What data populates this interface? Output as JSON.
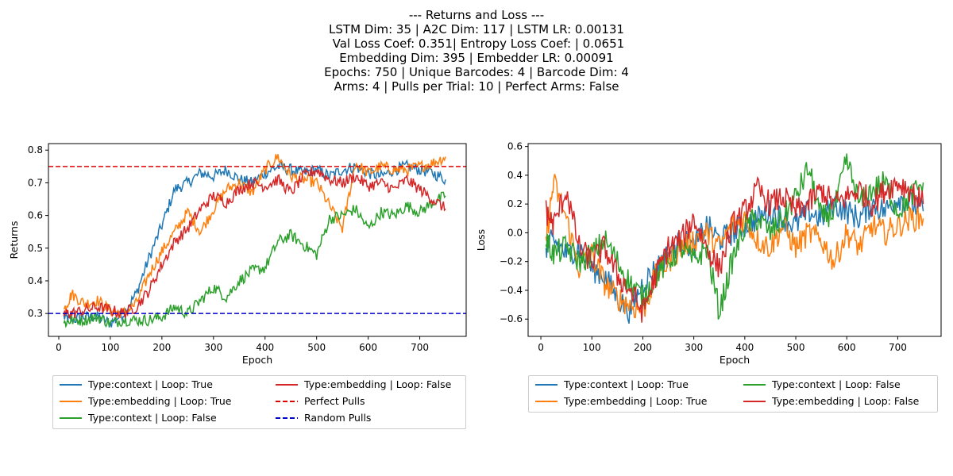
{
  "title_lines": [
    "--- Returns and Loss ---",
    "LSTM Dim: 35 | A2C Dim: 117 | LSTM LR: 0.00131",
    " Val Loss Coef: 0.351| Entropy Loss Coef: | 0.0651",
    "Embedding Dim: 395 | Embedder LR: 0.00091",
    "Epochs: 750 | Unique Barcodes: 4 | Barcode Dim: 4",
    "Arms: 4 | Pulls per Trial: 10 | Perfect Arms: False"
  ],
  "colors": {
    "blue": "#1f77b4",
    "orange": "#ff7f0e",
    "green": "#2ca02c",
    "red": "#d62728",
    "perfect": "#e00000",
    "random": "#0000cc"
  },
  "chart_data": [
    {
      "type": "line",
      "xlabel": "Epoch",
      "ylabel": "Returns",
      "xlim": [
        -20,
        790
      ],
      "ylim": [
        0.23,
        0.82
      ],
      "xticks": [
        0,
        100,
        200,
        300,
        400,
        500,
        600,
        700
      ],
      "yticks": [
        0.3,
        0.4,
        0.5,
        0.6,
        0.7,
        0.8
      ],
      "ytick_labels": [
        "0.3",
        "0.4",
        "0.5",
        "0.6",
        "0.7",
        "0.8"
      ],
      "hlines": [
        {
          "name": "Perfect Pulls",
          "y": 0.75,
          "color": "#e00000"
        },
        {
          "name": "Random Pulls",
          "y": 0.3,
          "color": "#0000cc"
        }
      ],
      "series": [
        {
          "name": "Type:context | Loop: True",
          "color": "#1f77b4",
          "x": [
            10,
            25,
            50,
            75,
            100,
            125,
            150,
            175,
            200,
            225,
            250,
            275,
            300,
            325,
            350,
            375,
            400,
            425,
            450,
            475,
            500,
            525,
            550,
            575,
            600,
            625,
            650,
            675,
            700,
            725,
            750
          ],
          "y": [
            0.29,
            0.28,
            0.29,
            0.29,
            0.27,
            0.3,
            0.36,
            0.47,
            0.57,
            0.68,
            0.7,
            0.73,
            0.72,
            0.74,
            0.71,
            0.7,
            0.73,
            0.75,
            0.74,
            0.73,
            0.74,
            0.72,
            0.74,
            0.75,
            0.73,
            0.72,
            0.74,
            0.75,
            0.74,
            0.73,
            0.71
          ]
        },
        {
          "name": "Type:embedding | Loop: True",
          "color": "#ff7f0e",
          "x": [
            10,
            25,
            50,
            75,
            100,
            125,
            150,
            175,
            200,
            225,
            250,
            275,
            300,
            325,
            350,
            375,
            400,
            425,
            450,
            475,
            500,
            525,
            550,
            575,
            600,
            625,
            650,
            675,
            700,
            725,
            750
          ],
          "y": [
            0.31,
            0.36,
            0.33,
            0.34,
            0.31,
            0.3,
            0.33,
            0.42,
            0.49,
            0.55,
            0.61,
            0.55,
            0.62,
            0.68,
            0.7,
            0.67,
            0.74,
            0.78,
            0.72,
            0.71,
            0.7,
            0.63,
            0.56,
            0.76,
            0.73,
            0.75,
            0.74,
            0.74,
            0.75,
            0.76,
            0.78
          ]
        },
        {
          "name": "Type:context | Loop: False",
          "color": "#2ca02c",
          "x": [
            10,
            25,
            50,
            75,
            100,
            125,
            150,
            175,
            200,
            225,
            250,
            275,
            300,
            325,
            350,
            375,
            400,
            425,
            450,
            475,
            500,
            525,
            550,
            575,
            600,
            625,
            650,
            675,
            700,
            725,
            750
          ],
          "y": [
            0.27,
            0.28,
            0.28,
            0.29,
            0.27,
            0.28,
            0.28,
            0.28,
            0.29,
            0.32,
            0.3,
            0.34,
            0.38,
            0.35,
            0.4,
            0.43,
            0.44,
            0.52,
            0.54,
            0.51,
            0.48,
            0.59,
            0.6,
            0.62,
            0.56,
            0.61,
            0.6,
            0.63,
            0.61,
            0.64,
            0.66
          ]
        },
        {
          "name": "Type:embedding | Loop: False",
          "color": "#d62728",
          "x": [
            10,
            25,
            50,
            75,
            100,
            125,
            150,
            175,
            200,
            225,
            250,
            275,
            300,
            325,
            350,
            375,
            400,
            425,
            450,
            475,
            500,
            525,
            550,
            575,
            600,
            625,
            650,
            675,
            700,
            725,
            750
          ],
          "y": [
            0.3,
            0.3,
            0.31,
            0.32,
            0.31,
            0.3,
            0.32,
            0.37,
            0.45,
            0.52,
            0.56,
            0.62,
            0.66,
            0.64,
            0.68,
            0.7,
            0.69,
            0.71,
            0.67,
            0.72,
            0.74,
            0.71,
            0.7,
            0.72,
            0.69,
            0.7,
            0.68,
            0.71,
            0.68,
            0.65,
            0.62
          ]
        }
      ]
    },
    {
      "type": "line",
      "xlabel": "Epoch",
      "ylabel": "Loss",
      "xlim": [
        -25,
        785
      ],
      "ylim": [
        -0.72,
        0.62
      ],
      "xticks": [
        0,
        100,
        200,
        300,
        400,
        500,
        600,
        700
      ],
      "yticks": [
        -0.6,
        -0.4,
        -0.2,
        0.0,
        0.2,
        0.4,
        0.6
      ],
      "ytick_labels": [
        "−0.6",
        "−0.4",
        "−0.2",
        "0.0",
        "0.2",
        "0.4",
        "0.6"
      ],
      "series": [
        {
          "name": "Type:context | Loop: True",
          "color": "#1f77b4",
          "x": [
            10,
            25,
            50,
            75,
            100,
            125,
            150,
            175,
            200,
            225,
            250,
            275,
            300,
            325,
            350,
            375,
            400,
            425,
            450,
            475,
            500,
            525,
            550,
            575,
            600,
            625,
            650,
            675,
            700,
            725,
            750
          ],
          "y": [
            -0.1,
            -0.05,
            -0.15,
            -0.1,
            -0.25,
            -0.3,
            -0.45,
            -0.55,
            -0.35,
            -0.25,
            -0.15,
            -0.05,
            -0.1,
            0.05,
            -0.05,
            0.0,
            0.05,
            0.1,
            0.15,
            0.1,
            0.05,
            0.15,
            0.1,
            0.2,
            0.15,
            0.1,
            0.2,
            0.15,
            0.25,
            0.2,
            0.15
          ]
        },
        {
          "name": "Type:embedding | Loop: True",
          "color": "#ff7f0e",
          "x": [
            10,
            25,
            50,
            75,
            100,
            125,
            150,
            175,
            200,
            225,
            250,
            275,
            300,
            325,
            350,
            375,
            400,
            425,
            450,
            475,
            500,
            525,
            550,
            575,
            600,
            625,
            650,
            675,
            700,
            725,
            750
          ],
          "y": [
            -0.05,
            0.35,
            0.1,
            -0.25,
            -0.15,
            -0.35,
            -0.45,
            -0.5,
            -0.55,
            -0.3,
            -0.2,
            -0.1,
            -0.05,
            0.0,
            -0.1,
            0.05,
            0.1,
            -0.05,
            -0.1,
            0.05,
            -0.1,
            0.0,
            -0.05,
            -0.2,
            0.0,
            -0.1,
            0.05,
            0.0,
            0.05,
            0.1,
            0.1
          ]
        },
        {
          "name": "Type:context | Loop: False",
          "color": "#2ca02c",
          "x": [
            10,
            25,
            50,
            75,
            100,
            125,
            150,
            175,
            200,
            225,
            250,
            275,
            300,
            325,
            350,
            375,
            400,
            425,
            450,
            475,
            500,
            525,
            550,
            575,
            600,
            625,
            650,
            675,
            700,
            725,
            750
          ],
          "y": [
            -0.05,
            -0.15,
            -0.1,
            -0.2,
            -0.15,
            -0.05,
            -0.2,
            -0.35,
            -0.45,
            -0.3,
            -0.2,
            -0.1,
            -0.2,
            -0.1,
            -0.55,
            -0.2,
            0.05,
            0.1,
            0.0,
            0.1,
            0.25,
            0.45,
            0.1,
            0.15,
            0.5,
            0.2,
            0.3,
            0.35,
            0.15,
            0.25,
            0.35
          ]
        },
        {
          "name": "Type:embedding | Loop: False",
          "color": "#d62728",
          "x": [
            10,
            25,
            50,
            75,
            100,
            125,
            150,
            175,
            200,
            225,
            250,
            275,
            300,
            325,
            350,
            375,
            400,
            425,
            450,
            475,
            500,
            525,
            550,
            575,
            600,
            625,
            650,
            675,
            700,
            725,
            750
          ],
          "y": [
            0.15,
            0.05,
            0.3,
            -0.1,
            -0.2,
            -0.1,
            -0.3,
            -0.4,
            -0.55,
            -0.3,
            -0.1,
            -0.05,
            0.1,
            -0.1,
            -0.25,
            0.05,
            0.15,
            0.3,
            0.2,
            0.25,
            0.15,
            0.2,
            0.3,
            0.2,
            0.25,
            0.3,
            0.2,
            0.3,
            0.35,
            0.3,
            0.2
          ]
        }
      ]
    }
  ],
  "legends": [
    {
      "entries": [
        {
          "label": "Type:context | Loop: True",
          "color": "#1f77b4",
          "dash": false
        },
        {
          "label": "Type:embedding | Loop: True",
          "color": "#ff7f0e",
          "dash": false
        },
        {
          "label": "Type:context | Loop: False",
          "color": "#2ca02c",
          "dash": false
        },
        {
          "label": "Type:embedding | Loop: False",
          "color": "#d62728",
          "dash": false
        },
        {
          "label": "Perfect Pulls",
          "color": "#e00000",
          "dash": true
        },
        {
          "label": "Random Pulls",
          "color": "#0000cc",
          "dash": true
        }
      ]
    },
    {
      "entries": [
        {
          "label": "Type:context | Loop: True",
          "color": "#1f77b4",
          "dash": false
        },
        {
          "label": "Type:embedding | Loop: True",
          "color": "#ff7f0e",
          "dash": false
        },
        {
          "label": "Type:context | Loop: False",
          "color": "#2ca02c",
          "dash": false
        },
        {
          "label": "Type:embedding | Loop: False",
          "color": "#d62728",
          "dash": false
        }
      ]
    }
  ]
}
